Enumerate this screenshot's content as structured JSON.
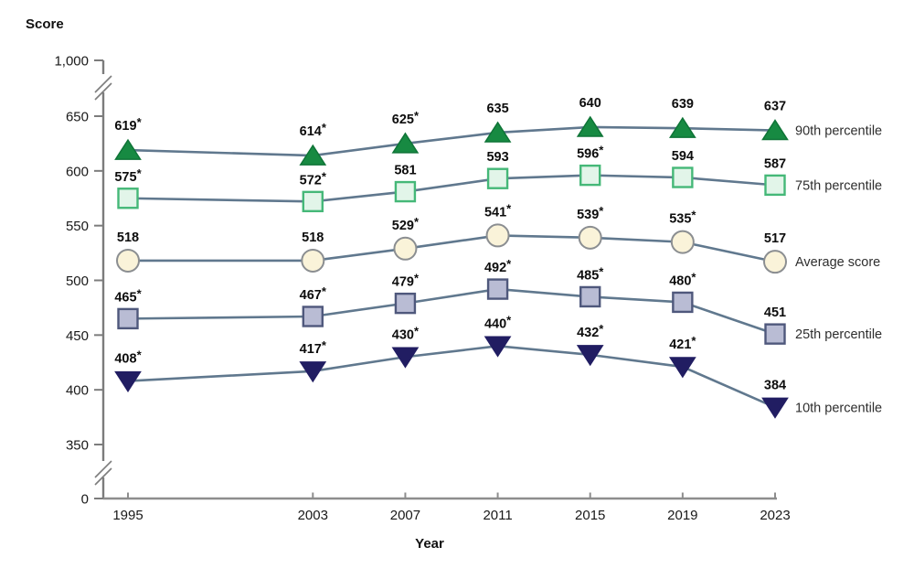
{
  "chart_data": {
    "type": "line",
    "title": "",
    "ylabel": "Score",
    "xlabel": "Year",
    "x": [
      1995,
      2003,
      2007,
      2011,
      2015,
      2019,
      2023
    ],
    "x_tick_labels": [
      "1995",
      "2003",
      "2007",
      "2011",
      "2015",
      "2019",
      "2023"
    ],
    "y_axis": {
      "ticks": [
        {
          "label": "1,000",
          "value": 1000
        },
        {
          "label": "650",
          "value": 650
        },
        {
          "label": "600",
          "value": 600
        },
        {
          "label": "550",
          "value": 550
        },
        {
          "label": "500",
          "value": 500
        },
        {
          "label": "450",
          "value": 450
        },
        {
          "label": "400",
          "value": 400
        },
        {
          "label": "350",
          "value": 350
        },
        {
          "label": "0",
          "value": 0
        }
      ],
      "broken_axis": true,
      "break_locations": [
        "between 650 and 1,000",
        "between 0 and 350"
      ]
    },
    "ylim_displayed": [
      350,
      650
    ],
    "grid": false,
    "legend_position": "right-of-last-point",
    "line_color": "#60788e",
    "axis_color": "#7c7c7c",
    "x_axis_color": "#8d8d8d",
    "series": [
      {
        "name": "90th percentile",
        "marker": "triangle-up",
        "fill": "#178a42",
        "stroke": "#0f7437",
        "values": [
          619,
          614,
          625,
          635,
          640,
          639,
          637
        ],
        "labels": [
          "619*",
          "614*",
          "625*",
          "635",
          "640",
          "639",
          "637"
        ]
      },
      {
        "name": "75th percentile",
        "marker": "square",
        "fill": "#e2f5e9",
        "stroke": "#45b878",
        "values": [
          575,
          572,
          581,
          593,
          596,
          594,
          587
        ],
        "labels": [
          "575*",
          "572*",
          "581",
          "593",
          "596*",
          "594",
          "587"
        ]
      },
      {
        "name": "Average score",
        "marker": "circle",
        "fill": "#faf3d9",
        "stroke": "#8b8e91",
        "values": [
          518,
          518,
          529,
          541,
          539,
          535,
          517
        ],
        "labels": [
          "518",
          "518",
          "529*",
          "541*",
          "539*",
          "535*",
          "517"
        ]
      },
      {
        "name": "25th percentile",
        "marker": "square",
        "fill": "#b9bcd4",
        "stroke": "#4f587c",
        "values": [
          465,
          467,
          479,
          492,
          485,
          480,
          451
        ],
        "labels": [
          "465*",
          "467*",
          "479*",
          "492*",
          "485*",
          "480*",
          "451"
        ]
      },
      {
        "name": "10th percentile",
        "marker": "triangle-down",
        "fill": "#211d62",
        "stroke": "#211d62",
        "values": [
          408,
          417,
          430,
          440,
          432,
          421,
          384
        ],
        "labels": [
          "408*",
          "417*",
          "430*",
          "440*",
          "432*",
          "421*",
          "384"
        ]
      }
    ]
  }
}
